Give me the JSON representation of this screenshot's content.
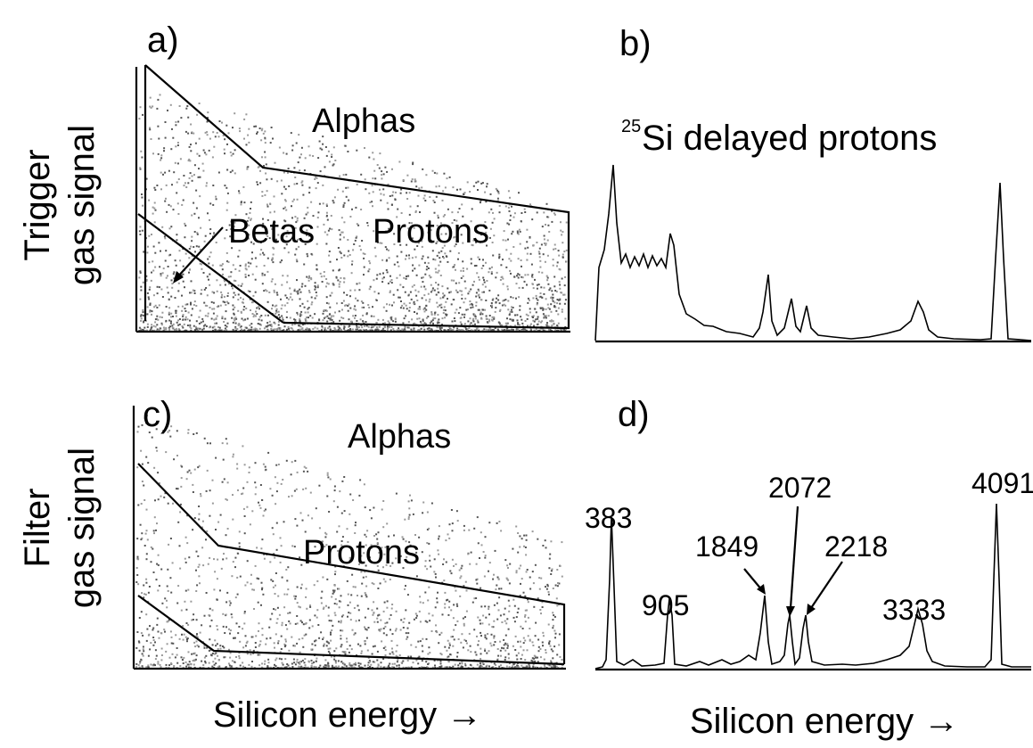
{
  "row_labels": [
    [
      "Trigger",
      "gas signal"
    ],
    [
      "Filter",
      "gas signal"
    ]
  ],
  "panels": {
    "a": {
      "letter": "a)",
      "labels": [
        "Alphas",
        "Betas",
        "Protons"
      ]
    },
    "b": {
      "letter": "b)",
      "title_sup": "25",
      "title": "Si delayed protons"
    },
    "c": {
      "letter": "c)",
      "labels": [
        "Alphas",
        "Protons"
      ]
    },
    "d": {
      "letter": "d)",
      "peaks": [
        383,
        905,
        1849,
        2072,
        2218,
        3333,
        4091
      ]
    }
  },
  "x_labels": [
    "Silicon energy →",
    "Silicon energy →"
  ]
}
